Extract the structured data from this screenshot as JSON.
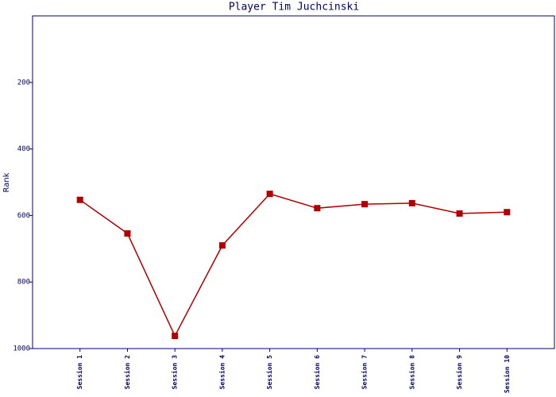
{
  "chart_data": {
    "type": "line",
    "title": "Player Tim Juchcinski",
    "y_label": "Rank",
    "categories": [
      "Session 1",
      "Session 2",
      "Session 3",
      "Session 4",
      "Session 5",
      "Session 6",
      "Session 7",
      "Session 8",
      "Session 9",
      "Session 10"
    ],
    "series": [
      {
        "name": "Rank",
        "color": "#b00000",
        "values": [
          553,
          654,
          962,
          690,
          535,
          578,
          566,
          563,
          594,
          590
        ]
      }
    ],
    "ylim": [
      0,
      1000
    ],
    "yticks": [
      200,
      400,
      600,
      800,
      1000
    ],
    "y_inverted": true,
    "grid": false
  }
}
